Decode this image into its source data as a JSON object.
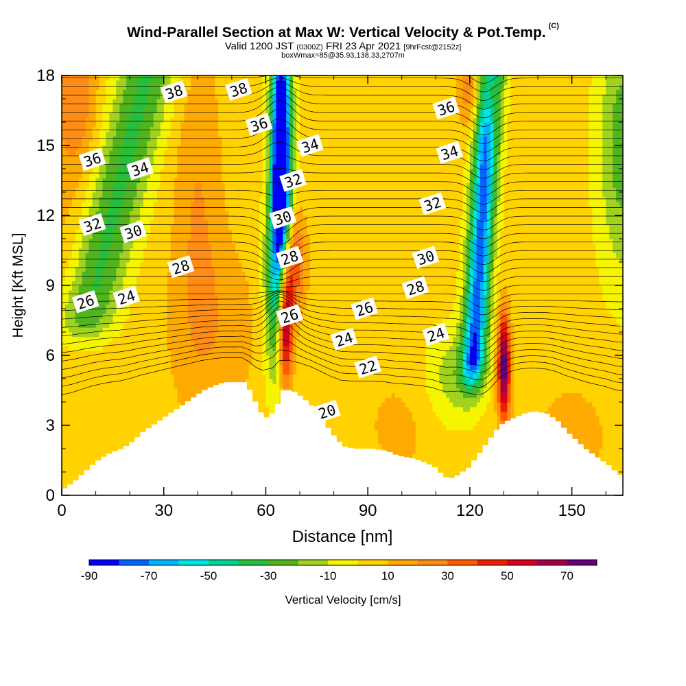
{
  "header": {
    "title": "Wind-Parallel Section at Max W: Vertical Velocity & Pot.Temp.",
    "copyright": "(C)",
    "valid_prefix": "Valid 1200 JST",
    "valid_utc": "(0300Z)",
    "valid_date": "FRI 23 Apr 2021",
    "forecast": "[9hrFcst@2152z]",
    "box": "boxWmax=85@35.93,138.33,2707m"
  },
  "chart_data": {
    "type": "heatmap",
    "title": "Wind-Parallel Section at Max W: Vertical Velocity & Pot.Temp.",
    "xlabel": "Distance [nm]",
    "ylabel": "Height [Kft MSL]",
    "xlim": [
      0,
      165
    ],
    "ylim": [
      0,
      18
    ],
    "xticks": [
      "0",
      "30",
      "60",
      "90",
      "120",
      "150"
    ],
    "yticks": [
      "0",
      "3",
      "6",
      "9",
      "12",
      "15",
      "18"
    ],
    "colorbar": {
      "label": "Vertical Velocity [cm/s]",
      "levels": [
        -90,
        -80,
        -70,
        -60,
        -50,
        -40,
        -30,
        -20,
        -10,
        0,
        10,
        20,
        30,
        40,
        50,
        60,
        70,
        80
      ],
      "tick_labels": [
        "-90",
        "-70",
        "-50",
        "-30",
        "-10",
        "10",
        "30",
        "50",
        "70"
      ],
      "colors": [
        "#0000ff",
        "#0064ff",
        "#00b4ff",
        "#00e6e6",
        "#00d296",
        "#28be3c",
        "#50b41e",
        "#a0d21e",
        "#f5f500",
        "#ffd200",
        "#ffaa00",
        "#ff8c14",
        "#ff5a00",
        "#f01e00",
        "#d2001e",
        "#a00046",
        "#640078"
      ]
    },
    "terrain_heights_kft": [
      [
        0,
        0.3
      ],
      [
        3,
        0.6
      ],
      [
        6,
        1.0
      ],
      [
        9,
        1.4
      ],
      [
        12,
        1.7
      ],
      [
        15,
        1.9
      ],
      [
        17,
        2.0
      ],
      [
        20,
        2.3
      ],
      [
        23,
        2.7
      ],
      [
        26,
        3.0
      ],
      [
        29,
        3.3
      ],
      [
        32,
        3.6
      ],
      [
        35,
        3.9
      ],
      [
        38,
        4.2
      ],
      [
        41,
        4.5
      ],
      [
        44,
        4.7
      ],
      [
        47,
        4.85
      ],
      [
        53,
        4.85
      ],
      [
        55,
        4.4
      ],
      [
        57,
        3.7
      ],
      [
        59,
        3.3
      ],
      [
        62,
        3.6
      ],
      [
        64,
        4.5
      ],
      [
        67,
        4.5
      ],
      [
        70,
        4.2
      ],
      [
        73,
        3.8
      ],
      [
        76,
        3.2
      ],
      [
        79,
        2.6
      ],
      [
        82,
        2.1
      ],
      [
        85,
        2.0
      ],
      [
        90,
        2.0
      ],
      [
        95,
        1.9
      ],
      [
        98,
        1.7
      ],
      [
        102,
        1.6
      ],
      [
        106,
        1.4
      ],
      [
        109,
        1.2
      ],
      [
        111,
        0.9
      ],
      [
        113,
        0.7
      ],
      [
        115,
        0.8
      ],
      [
        117,
        1.0
      ],
      [
        119,
        1.2
      ],
      [
        121,
        1.6
      ],
      [
        123,
        2.0
      ],
      [
        125,
        2.4
      ],
      [
        127,
        2.8
      ],
      [
        129,
        3.1
      ],
      [
        132,
        3.3
      ],
      [
        135,
        3.5
      ],
      [
        138,
        3.6
      ],
      [
        142,
        3.5
      ],
      [
        145,
        3.2
      ],
      [
        148,
        2.7
      ],
      [
        151,
        2.3
      ],
      [
        154,
        1.9
      ],
      [
        157,
        1.6
      ],
      [
        160,
        1.3
      ],
      [
        163,
        0.9
      ],
      [
        165,
        0.8
      ]
    ],
    "w_features": [
      {
        "x": 65,
        "y0": 5.5,
        "y1": 18,
        "w": -90,
        "note": "downdraft column"
      },
      {
        "x": 125,
        "y0": 7,
        "y1": 18,
        "w": -60,
        "note": "downdraft column"
      },
      {
        "x": 65,
        "y0": 4.5,
        "y1": 10,
        "w": 70,
        "note": "updraft"
      },
      {
        "x": 130,
        "y0": 4,
        "y1": 8,
        "w": 55,
        "note": "updraft"
      },
      {
        "x": 25,
        "y0": 9,
        "y1": 18,
        "w": -30,
        "note": "weak sink band"
      },
      {
        "x": 118,
        "y0": 5,
        "y1": 7,
        "w": -10,
        "note": "weak sink"
      }
    ],
    "theta_labels": [
      {
        "text": "38",
        "x": 33,
        "y": 17.3
      },
      {
        "text": "38",
        "x": 52,
        "y": 17.4
      },
      {
        "text": "36",
        "x": 9,
        "y": 14.4
      },
      {
        "text": "34",
        "x": 23,
        "y": 14.0
      },
      {
        "text": "36",
        "x": 58,
        "y": 15.9
      },
      {
        "text": "34",
        "x": 73,
        "y": 15.0
      },
      {
        "text": "32",
        "x": 68,
        "y": 13.5
      },
      {
        "text": "32",
        "x": 9,
        "y": 11.6
      },
      {
        "text": "30",
        "x": 21,
        "y": 11.3
      },
      {
        "text": "30",
        "x": 65,
        "y": 11.9
      },
      {
        "text": "28",
        "x": 35,
        "y": 9.8
      },
      {
        "text": "28",
        "x": 67,
        "y": 10.2
      },
      {
        "text": "26",
        "x": 7,
        "y": 8.3
      },
      {
        "text": "24",
        "x": 19,
        "y": 8.5
      },
      {
        "text": "26",
        "x": 67,
        "y": 7.7
      },
      {
        "text": "24",
        "x": 83,
        "y": 6.7
      },
      {
        "text": "22",
        "x": 90,
        "y": 5.5
      },
      {
        "text": "26",
        "x": 89,
        "y": 8.0
      },
      {
        "text": "20",
        "x": 78,
        "y": 3.6
      },
      {
        "text": "36",
        "x": 113,
        "y": 16.6
      },
      {
        "text": "34",
        "x": 114,
        "y": 14.7
      },
      {
        "text": "32",
        "x": 109,
        "y": 12.5
      },
      {
        "text": "30",
        "x": 107,
        "y": 10.2
      },
      {
        "text": "28",
        "x": 104,
        "y": 8.9
      },
      {
        "text": "24",
        "x": 110,
        "y": 6.9
      }
    ]
  }
}
